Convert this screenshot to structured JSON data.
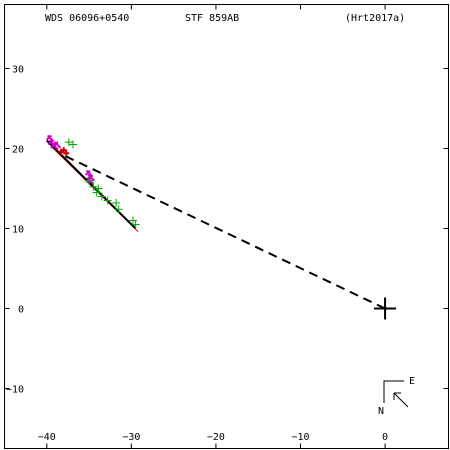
{
  "header": {
    "wds_id": "WDS 06096+0540",
    "pair": "STF 859AB",
    "reference": "(Hrt2017a)"
  },
  "compass": {
    "east_label": "E",
    "north_label": "N"
  },
  "colors": {
    "axes": "#000000",
    "fit_line": "#000000",
    "reference_line": "#cc0000",
    "magenta_points": "#cc00cc",
    "green_points": "#00aa00",
    "red_points": "#cc0000",
    "primary_marker": "#000000"
  },
  "chart_data": {
    "type": "scatter",
    "xlim": [
      -45,
      7.5
    ],
    "ylim": [
      -17.5,
      38
    ],
    "x_ticks": [
      -40,
      -30,
      -20,
      -10,
      0
    ],
    "y_ticks": [
      -10,
      0,
      10,
      20,
      30
    ],
    "x_tick_labels": [
      "−40",
      "−30",
      "−20",
      "−10",
      "0"
    ],
    "y_tick_labels": [
      "−10",
      "0",
      "10",
      "20",
      "30"
    ],
    "grid": false,
    "primary": {
      "x": 0,
      "y": 0
    },
    "dashed_link": {
      "from": [
        0,
        0
      ],
      "to": [
        -38.5,
        19.4
      ]
    },
    "fit_line": {
      "from": [
        -40,
        21
      ],
      "to": [
        -29.5,
        10
      ]
    },
    "reference_line": {
      "from": [
        -39.5,
        20.3
      ],
      "to": [
        -29.2,
        9.6
      ]
    },
    "series": [
      {
        "marker": "magenta",
        "points": [
          [
            -39.6,
            21.2
          ],
          [
            -39.4,
            20.6
          ],
          [
            -39.1,
            20.2
          ],
          [
            -38.8,
            20.4
          ],
          [
            -35.0,
            16.8
          ],
          [
            -34.9,
            15.9
          ],
          [
            -34.8,
            16.3
          ]
        ]
      },
      {
        "marker": "green",
        "points": [
          [
            -37.4,
            20.8
          ],
          [
            -36.9,
            20.5
          ],
          [
            -35.0,
            16.0
          ],
          [
            -34.5,
            15.2
          ],
          [
            -34.1,
            14.5
          ],
          [
            -33.9,
            15.0
          ],
          [
            -33.5,
            14.0
          ],
          [
            -32.8,
            13.5
          ],
          [
            -31.8,
            13.2
          ],
          [
            -31.5,
            12.4
          ],
          [
            -29.8,
            11.0
          ],
          [
            -29.5,
            10.5
          ]
        ]
      },
      {
        "marker": "red",
        "points": [
          [
            -38.3,
            19.6
          ],
          [
            -38.0,
            19.8
          ],
          [
            -37.7,
            19.4
          ]
        ]
      }
    ]
  }
}
